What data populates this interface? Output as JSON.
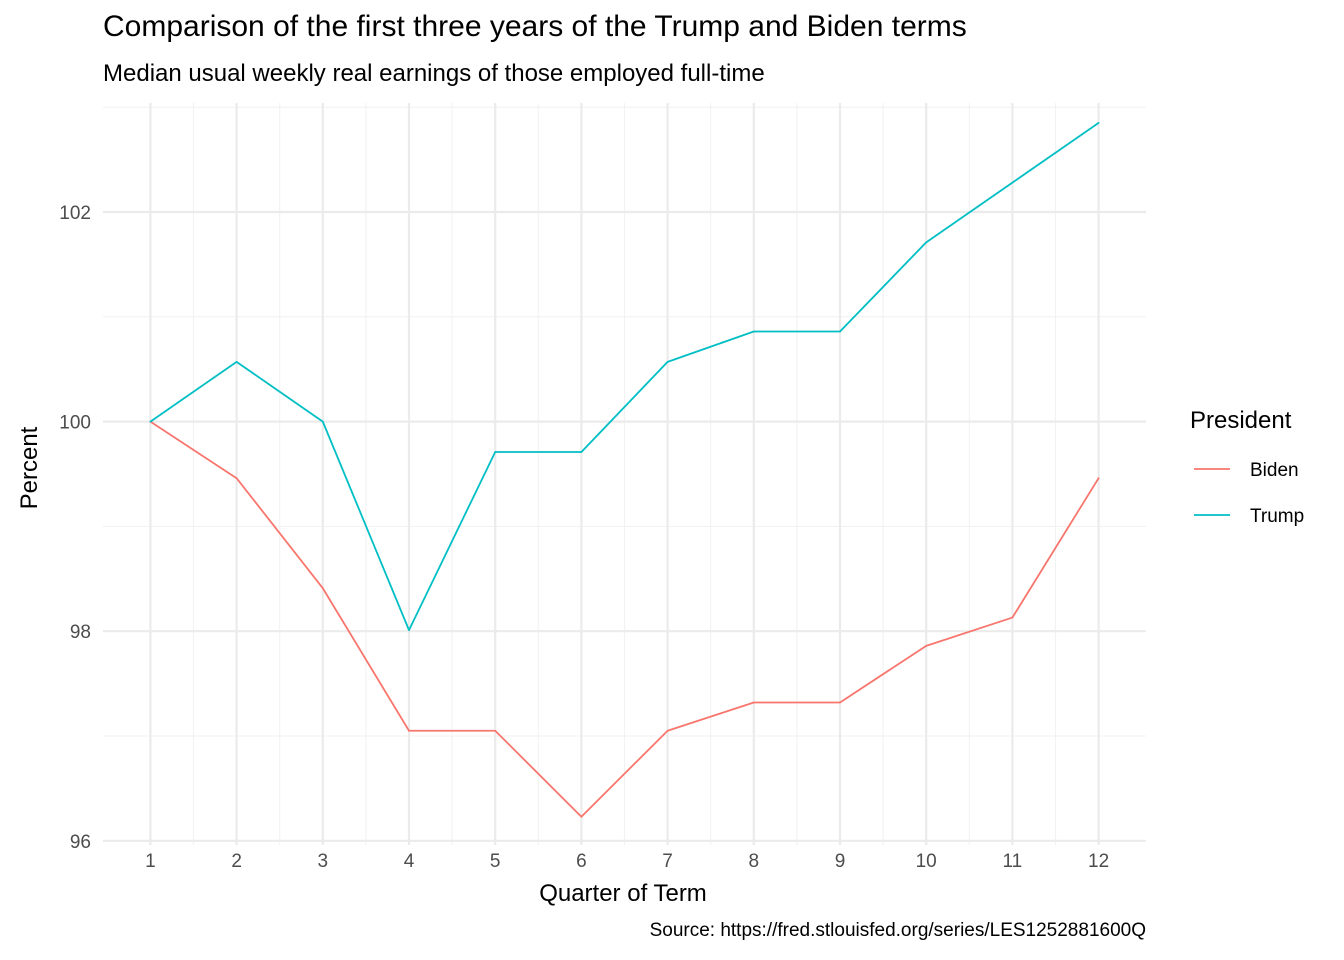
{
  "chart_data": {
    "type": "line",
    "title": "Comparison of the first three years of the Trump and Biden terms",
    "subtitle": "Median usual weekly real earnings of those employed full-time",
    "caption": "Source: https://fred.stlouisfed.org/series/LES1252881600Q",
    "xlabel": "Quarter of Term",
    "ylabel": "Percent",
    "x": [
      1,
      2,
      3,
      4,
      5,
      6,
      7,
      8,
      9,
      10,
      11,
      12
    ],
    "xticks": [
      "1",
      "2",
      "3",
      "4",
      "5",
      "6",
      "7",
      "8",
      "9",
      "10",
      "11",
      "12"
    ],
    "yticks": [
      "96",
      "98",
      "100",
      "102"
    ],
    "xlim": [
      0.45,
      12.55
    ],
    "ylim": [
      95.96,
      103.04
    ],
    "grid": true,
    "legend": {
      "title": "President",
      "position": "right"
    },
    "series": [
      {
        "name": "Biden",
        "color": "#F8766D",
        "values": [
          100.0,
          99.46,
          98.41,
          97.05,
          97.05,
          96.23,
          97.05,
          97.32,
          97.32,
          97.86,
          98.13,
          99.46
        ]
      },
      {
        "name": "Trump",
        "color": "#00BFC4",
        "values": [
          100.0,
          100.57,
          100.0,
          98.01,
          99.71,
          99.71,
          100.57,
          100.86,
          100.86,
          101.71,
          102.28,
          102.85
        ]
      }
    ]
  }
}
